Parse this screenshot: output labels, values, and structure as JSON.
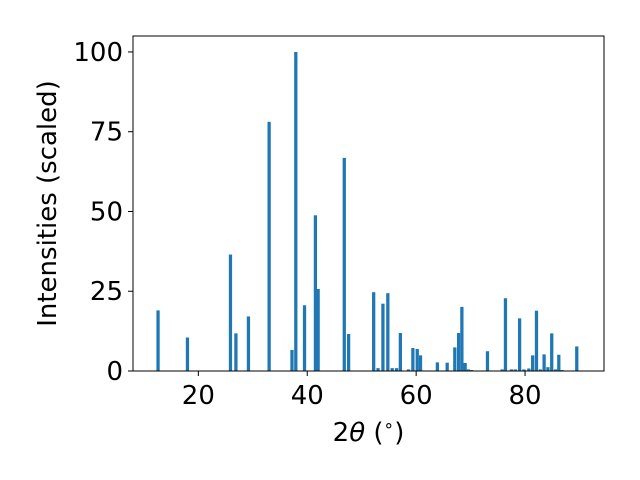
{
  "chart_data": {
    "type": "bar",
    "title": "",
    "xlabel_parts": [
      "2",
      "θ",
      " (",
      "∘",
      ")"
    ],
    "ylabel": "Intensities (scaled)",
    "xlim": [
      8.0,
      94.5
    ],
    "ylim": [
      0,
      105
    ],
    "xticks": [
      20,
      40,
      60,
      80
    ],
    "yticks": [
      0,
      25,
      50,
      75,
      100
    ],
    "grid": false,
    "bar_color": "#1f77b4",
    "bar_width": 0.6,
    "x": [
      12.6,
      18.0,
      25.9,
      26.9,
      29.2,
      33.0,
      37.2,
      37.9,
      39.5,
      41.5,
      42.0,
      46.8,
      47.6,
      52.2,
      53.0,
      53.9,
      54.8,
      55.6,
      56.4,
      57.1,
      58.6,
      59.4,
      60.2,
      60.8,
      63.9,
      65.7,
      67.1,
      67.8,
      68.4,
      69.0,
      69.6,
      70.2,
      73.1,
      75.8,
      76.4,
      77.5,
      78.2,
      79.0,
      79.8,
      80.7,
      81.4,
      82.1,
      82.8,
      83.5,
      84.2,
      84.9,
      85.6,
      86.2,
      86.8,
      89.5
    ],
    "values": [
      19.0,
      10.5,
      36.5,
      11.8,
      17.1,
      78.1,
      6.6,
      100.0,
      20.6,
      48.8,
      25.7,
      66.8,
      11.6,
      24.7,
      0.9,
      21.1,
      24.4,
      0.9,
      0.9,
      11.9,
      0.5,
      7.2,
      6.9,
      4.9,
      2.7,
      2.6,
      7.4,
      11.9,
      20.1,
      2.5,
      0.5,
      0.3,
      6.2,
      0.5,
      22.8,
      0.5,
      0.5,
      16.5,
      0.5,
      0.8,
      4.9,
      18.9,
      0.5,
      5.2,
      1.2,
      11.8,
      0.5,
      5.1,
      0.3,
      7.7
    ]
  }
}
